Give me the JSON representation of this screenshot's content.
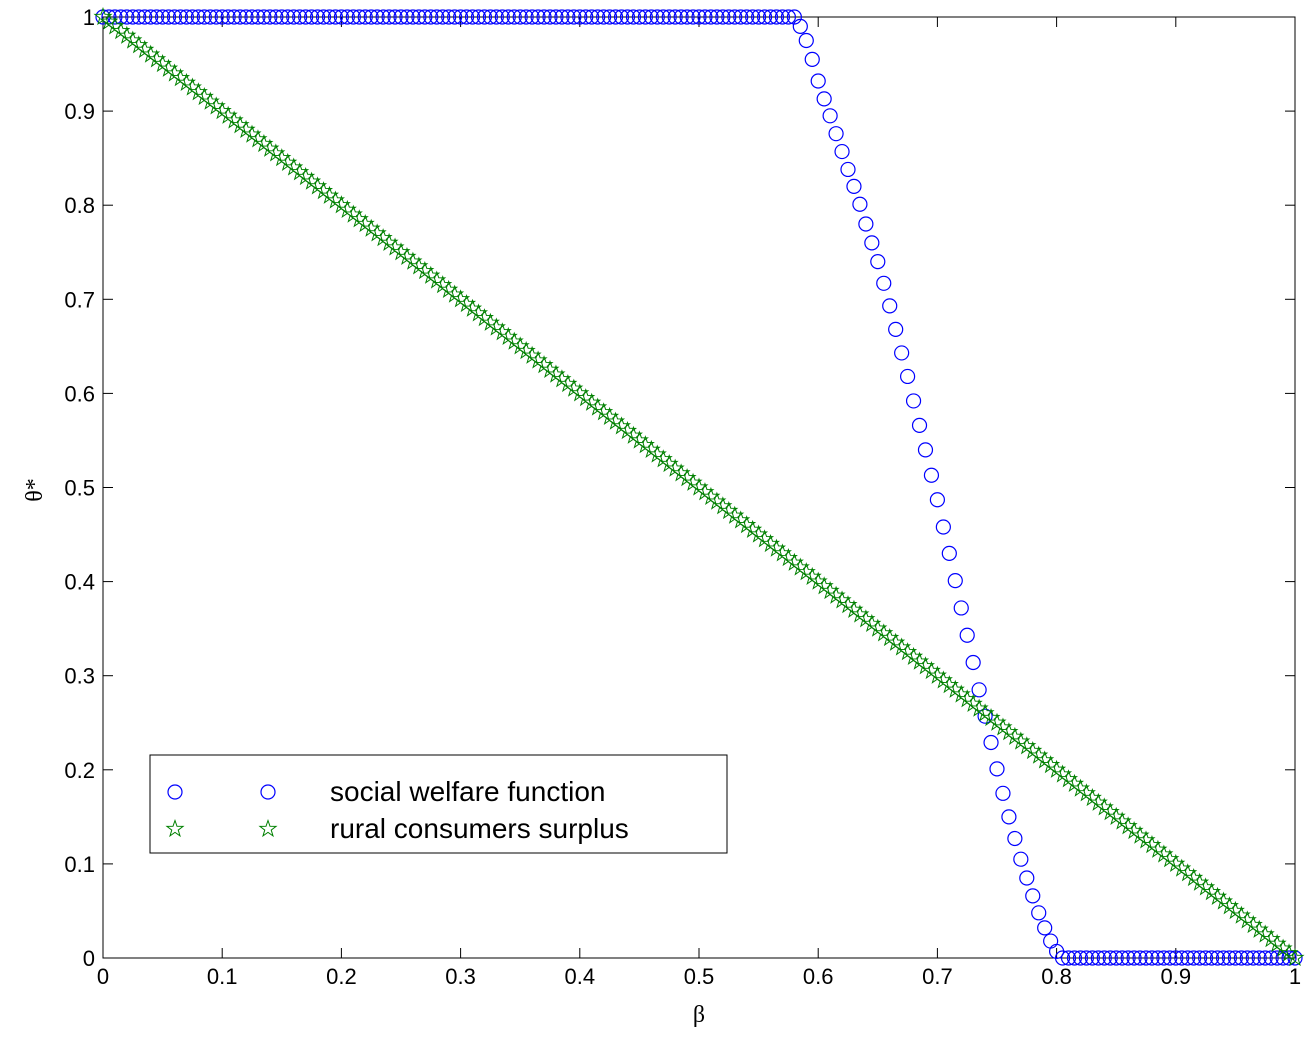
{
  "chart_data": {
    "type": "scatter",
    "xlabel": "β",
    "ylabel": "θ*",
    "xlim": [
      0,
      1
    ],
    "ylim": [
      0,
      1
    ],
    "xticks": [
      0,
      0.1,
      0.2,
      0.3,
      0.4,
      0.5,
      0.6,
      0.7,
      0.8,
      0.9,
      1
    ],
    "yticks": [
      0,
      0.1,
      0.2,
      0.3,
      0.4,
      0.5,
      0.6,
      0.7,
      0.8,
      0.9,
      1
    ],
    "legend": "lower left",
    "x": [
      0,
      0.005,
      0.01,
      0.015,
      0.02,
      0.025,
      0.03,
      0.035,
      0.04,
      0.045,
      0.05,
      0.055,
      0.06,
      0.065,
      0.07,
      0.075,
      0.08,
      0.085,
      0.09,
      0.095,
      0.1,
      0.105,
      0.11,
      0.115,
      0.12,
      0.125,
      0.13,
      0.135,
      0.14,
      0.145,
      0.15,
      0.155,
      0.16,
      0.165,
      0.17,
      0.175,
      0.18,
      0.185,
      0.19,
      0.195,
      0.2,
      0.205,
      0.21,
      0.215,
      0.22,
      0.225,
      0.23,
      0.235,
      0.24,
      0.245,
      0.25,
      0.255,
      0.26,
      0.265,
      0.27,
      0.275,
      0.28,
      0.285,
      0.29,
      0.295,
      0.3,
      0.305,
      0.31,
      0.315,
      0.32,
      0.325,
      0.33,
      0.335,
      0.34,
      0.345,
      0.35,
      0.355,
      0.36,
      0.365,
      0.37,
      0.375,
      0.38,
      0.385,
      0.39,
      0.395,
      0.4,
      0.405,
      0.41,
      0.415,
      0.42,
      0.425,
      0.43,
      0.435,
      0.44,
      0.445,
      0.45,
      0.455,
      0.46,
      0.465,
      0.47,
      0.475,
      0.48,
      0.485,
      0.49,
      0.495,
      0.5,
      0.505,
      0.51,
      0.515,
      0.52,
      0.525,
      0.53,
      0.535,
      0.54,
      0.545,
      0.55,
      0.555,
      0.56,
      0.565,
      0.57,
      0.575,
      0.58,
      0.585,
      0.59,
      0.595,
      0.6,
      0.605,
      0.61,
      0.615,
      0.62,
      0.625,
      0.63,
      0.635,
      0.64,
      0.645,
      0.65,
      0.655,
      0.66,
      0.665,
      0.67,
      0.675,
      0.68,
      0.685,
      0.69,
      0.695,
      0.7,
      0.705,
      0.71,
      0.715,
      0.72,
      0.725,
      0.73,
      0.735,
      0.74,
      0.745,
      0.75,
      0.755,
      0.76,
      0.765,
      0.77,
      0.775,
      0.78,
      0.785,
      0.79,
      0.795,
      0.8,
      0.805,
      0.81,
      0.815,
      0.82,
      0.825,
      0.83,
      0.835,
      0.84,
      0.845,
      0.85,
      0.855,
      0.86,
      0.865,
      0.87,
      0.875,
      0.88,
      0.885,
      0.89,
      0.895,
      0.9,
      0.905,
      0.91,
      0.915,
      0.92,
      0.925,
      0.93,
      0.935,
      0.94,
      0.945,
      0.95,
      0.955,
      0.96,
      0.965,
      0.97,
      0.975,
      0.98,
      0.985,
      0.99,
      0.995,
      1
    ],
    "series": [
      {
        "name": "social welfare function",
        "color": "#0000ff",
        "marker": "circle",
        "values": [
          1,
          1,
          1,
          1,
          1,
          1,
          1,
          1,
          1,
          1,
          1,
          1,
          1,
          1,
          1,
          1,
          1,
          1,
          1,
          1,
          1,
          1,
          1,
          1,
          1,
          1,
          1,
          1,
          1,
          1,
          1,
          1,
          1,
          1,
          1,
          1,
          1,
          1,
          1,
          1,
          1,
          1,
          1,
          1,
          1,
          1,
          1,
          1,
          1,
          1,
          1,
          1,
          1,
          1,
          1,
          1,
          1,
          1,
          1,
          1,
          1,
          1,
          1,
          1,
          1,
          1,
          1,
          1,
          1,
          1,
          1,
          1,
          1,
          1,
          1,
          1,
          1,
          1,
          1,
          1,
          1,
          1,
          1,
          1,
          1,
          1,
          1,
          1,
          1,
          1,
          1,
          1,
          1,
          1,
          1,
          1,
          1,
          1,
          1,
          1,
          1,
          1,
          1,
          1,
          1,
          1,
          1,
          1,
          1,
          1,
          1,
          1,
          1,
          1,
          1,
          1,
          1,
          0.99,
          0.975,
          0.955,
          0.932,
          0.913,
          0.895,
          0.876,
          0.857,
          0.838,
          0.82,
          0.801,
          0.78,
          0.76,
          0.74,
          0.717,
          0.693,
          0.668,
          0.643,
          0.618,
          0.592,
          0.566,
          0.54,
          0.513,
          0.487,
          0.458,
          0.43,
          0.401,
          0.372,
          0.343,
          0.314,
          0.285,
          0.257,
          0.229,
          0.201,
          0.175,
          0.15,
          0.127,
          0.105,
          0.085,
          0.066,
          0.048,
          0.032,
          0.018,
          0.007,
          0,
          0,
          0,
          0,
          0,
          0,
          0,
          0,
          0,
          0,
          0,
          0,
          0,
          0,
          0,
          0,
          0,
          0,
          0,
          0,
          0,
          0,
          0,
          0,
          0,
          0,
          0,
          0,
          0,
          0,
          0,
          0,
          0,
          0,
          0,
          0,
          0,
          0,
          0,
          0
        ]
      },
      {
        "name": "rural consumers surplus",
        "color": "#008000",
        "marker": "star",
        "values": [
          1,
          0.995,
          0.99,
          0.985,
          0.98,
          0.975,
          0.97,
          0.965,
          0.96,
          0.955,
          0.95,
          0.945,
          0.94,
          0.935,
          0.93,
          0.925,
          0.92,
          0.915,
          0.91,
          0.905,
          0.9,
          0.895,
          0.89,
          0.885,
          0.88,
          0.875,
          0.87,
          0.865,
          0.86,
          0.855,
          0.85,
          0.845,
          0.84,
          0.835,
          0.83,
          0.825,
          0.82,
          0.815,
          0.81,
          0.805,
          0.8,
          0.795,
          0.79,
          0.785,
          0.78,
          0.775,
          0.77,
          0.765,
          0.76,
          0.755,
          0.75,
          0.745,
          0.74,
          0.735,
          0.73,
          0.725,
          0.72,
          0.715,
          0.71,
          0.705,
          0.7,
          0.695,
          0.69,
          0.685,
          0.68,
          0.675,
          0.67,
          0.665,
          0.66,
          0.655,
          0.65,
          0.645,
          0.64,
          0.635,
          0.63,
          0.625,
          0.62,
          0.615,
          0.61,
          0.605,
          0.6,
          0.595,
          0.59,
          0.585,
          0.58,
          0.575,
          0.57,
          0.565,
          0.56,
          0.555,
          0.55,
          0.545,
          0.54,
          0.535,
          0.53,
          0.525,
          0.52,
          0.515,
          0.51,
          0.505,
          0.5,
          0.495,
          0.49,
          0.485,
          0.48,
          0.475,
          0.47,
          0.465,
          0.46,
          0.455,
          0.45,
          0.445,
          0.44,
          0.435,
          0.43,
          0.425,
          0.42,
          0.415,
          0.41,
          0.405,
          0.4,
          0.395,
          0.39,
          0.385,
          0.38,
          0.375,
          0.37,
          0.365,
          0.36,
          0.355,
          0.35,
          0.345,
          0.34,
          0.335,
          0.33,
          0.325,
          0.32,
          0.315,
          0.31,
          0.305,
          0.3,
          0.295,
          0.29,
          0.285,
          0.28,
          0.275,
          0.27,
          0.265,
          0.26,
          0.255,
          0.25,
          0.245,
          0.24,
          0.235,
          0.23,
          0.225,
          0.22,
          0.215,
          0.21,
          0.205,
          0.2,
          0.195,
          0.19,
          0.185,
          0.18,
          0.175,
          0.17,
          0.165,
          0.16,
          0.155,
          0.15,
          0.145,
          0.14,
          0.135,
          0.13,
          0.125,
          0.12,
          0.115,
          0.11,
          0.105,
          0.1,
          0.095,
          0.09,
          0.085,
          0.08,
          0.075,
          0.07,
          0.065,
          0.06,
          0.055,
          0.05,
          0.045,
          0.04,
          0.035,
          0.03,
          0.025,
          0.02,
          0.015,
          0.01,
          0.005,
          0
        ]
      }
    ]
  }
}
